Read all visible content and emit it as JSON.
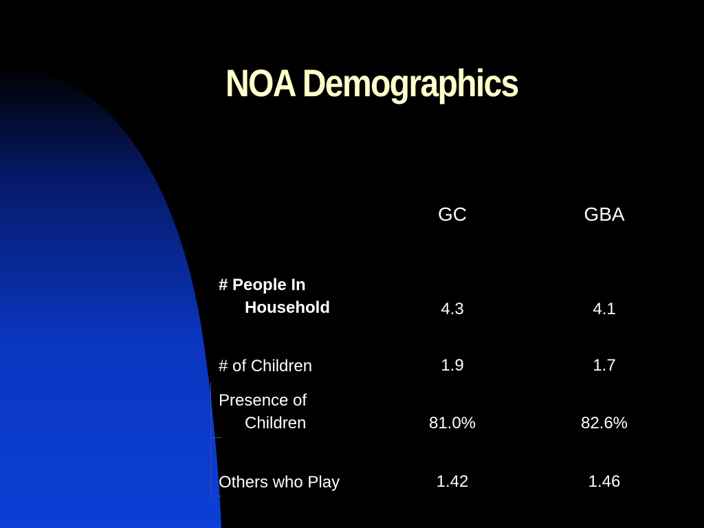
{
  "slide": {
    "title": "NOA Demographics"
  },
  "table": {
    "columns": [
      "GC",
      "GBA"
    ],
    "rows": [
      {
        "label_line1": "# People In",
        "label_line2": "Household",
        "gc": "4.3",
        "gba": "4.1"
      },
      {
        "label_line1": "# of Children",
        "label_line2": "",
        "gc": "1.9",
        "gba": "1.7"
      },
      {
        "label_line1": "Presence of",
        "label_line2": "Children",
        "gc": "81.0%",
        "gba": "82.6%"
      },
      {
        "label_line1": "Others who Play",
        "label_line2": "",
        "gc": "1.42",
        "gba": "1.46"
      }
    ]
  },
  "colors": {
    "background": "#000000",
    "title": "#ffffcc",
    "text": "#ffffff",
    "accent_blue": "#0a3ad0"
  }
}
